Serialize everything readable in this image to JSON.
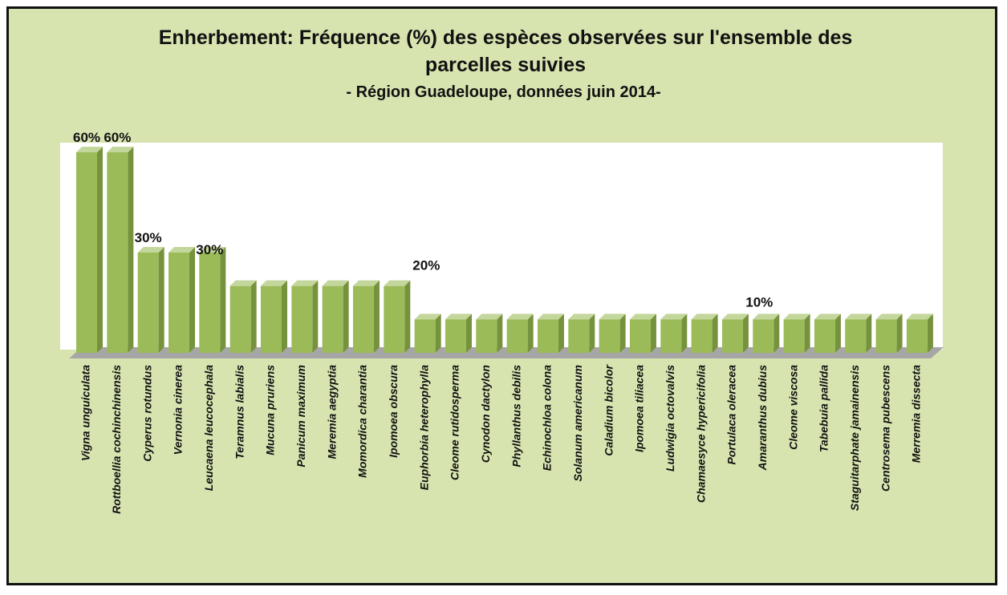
{
  "chart_data": {
    "type": "bar3d",
    "title": "Enherbement: Fréquence (%) des espèces observées sur l'ensemble des parcelles suivies",
    "subtitle": "- Région Guadeloupe, données juin 2014-",
    "categories": [
      "Vigna unguiculata",
      "Rottboellia cochinchinensis",
      "Cyperus rotundus",
      "Vernonia cinerea",
      "Leucaena leucocephala",
      "Teramnus labialis",
      "Mucuna pruriens",
      "Panicum maximum",
      "Meremia aegyptia",
      "Momordica charantia",
      "Ipomoea obscura",
      "Euphorbia heterophylla",
      "Cleome rutidosperma",
      "Cynodon dactylon",
      "Phyllanthus debilis",
      "Echinochloa colona",
      "Solanum americanum",
      "Caladium bicolor",
      "Ipomoea tiliacea",
      "Ludwigia octovalvis",
      "Chamaesyce hypericifolia",
      "Portulaca oleracea",
      "Amaranthus dubius",
      "Cleome viscosa",
      "Tabebuia pallida",
      "Staguitarphate jamainensis",
      "Centrosema pubescens",
      "Merremia dissecta"
    ],
    "values": [
      60,
      60,
      30,
      30,
      30,
      20,
      20,
      20,
      20,
      20,
      20,
      10,
      10,
      10,
      10,
      10,
      10,
      10,
      10,
      10,
      10,
      10,
      10,
      10,
      10,
      10,
      10,
      10
    ],
    "value_labels": [
      "60%",
      "60%",
      "30%",
      null,
      "30%",
      null,
      null,
      null,
      null,
      null,
      "20%",
      null,
      null,
      null,
      null,
      null,
      null,
      null,
      null,
      null,
      null,
      null,
      "10%",
      null,
      null,
      null,
      null,
      null
    ],
    "color": "#9bbb59"
  }
}
